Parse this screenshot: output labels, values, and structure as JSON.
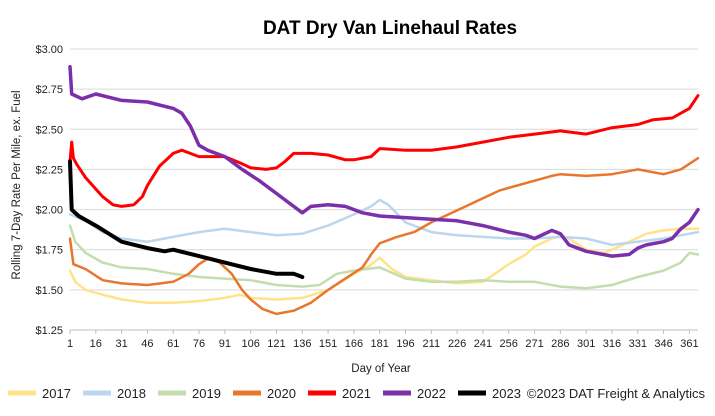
{
  "chart_data": {
    "type": "line",
    "title": "DAT Dry Van Linehaul Rates",
    "xlabel": "Day of Year",
    "ylabel": "Rolling 7-Day Rate Per Mile, ex. Fuel",
    "xlim": [
      1,
      366
    ],
    "ylim": [
      1.25,
      3.0
    ],
    "x_ticks": [
      1,
      16,
      31,
      46,
      61,
      76,
      91,
      106,
      121,
      136,
      151,
      166,
      181,
      196,
      211,
      226,
      241,
      256,
      271,
      286,
      301,
      316,
      331,
      346,
      361
    ],
    "y_ticks": [
      {
        "value": 1.25,
        "label": "$1.25"
      },
      {
        "value": 1.5,
        "label": "$1.50"
      },
      {
        "value": 1.75,
        "label": "$1.75"
      },
      {
        "value": 2.0,
        "label": "$2.00"
      },
      {
        "value": 2.25,
        "label": "$2.25"
      },
      {
        "value": 2.5,
        "label": "$2.50"
      },
      {
        "value": 2.75,
        "label": "$2.75"
      },
      {
        "value": 3.0,
        "label": "$3.00"
      }
    ],
    "grid": "horizontal",
    "legend_position": "bottom",
    "credit": "©2023 DAT Freight & Analytics",
    "series": [
      {
        "name": "2017",
        "color": "#FFE38A",
        "width": 2.5,
        "points": [
          [
            1,
            1.62
          ],
          [
            4,
            1.55
          ],
          [
            10,
            1.5
          ],
          [
            20,
            1.47
          ],
          [
            31,
            1.44
          ],
          [
            46,
            1.42
          ],
          [
            61,
            1.42
          ],
          [
            76,
            1.43
          ],
          [
            91,
            1.45
          ],
          [
            100,
            1.47
          ],
          [
            106,
            1.45
          ],
          [
            121,
            1.44
          ],
          [
            136,
            1.45
          ],
          [
            151,
            1.5
          ],
          [
            166,
            1.6
          ],
          [
            175,
            1.65
          ],
          [
            181,
            1.7
          ],
          [
            188,
            1.63
          ],
          [
            196,
            1.58
          ],
          [
            211,
            1.56
          ],
          [
            226,
            1.54
          ],
          [
            241,
            1.55
          ],
          [
            248,
            1.6
          ],
          [
            256,
            1.66
          ],
          [
            266,
            1.72
          ],
          [
            271,
            1.77
          ],
          [
            281,
            1.82
          ],
          [
            286,
            1.84
          ],
          [
            291,
            1.82
          ],
          [
            301,
            1.75
          ],
          [
            311,
            1.73
          ],
          [
            316,
            1.75
          ],
          [
            326,
            1.8
          ],
          [
            336,
            1.85
          ],
          [
            346,
            1.87
          ],
          [
            356,
            1.88
          ],
          [
            366,
            1.88
          ]
        ]
      },
      {
        "name": "2018",
        "color": "#BCD6EE",
        "width": 2.5,
        "points": [
          [
            1,
            1.97
          ],
          [
            10,
            1.93
          ],
          [
            20,
            1.86
          ],
          [
            31,
            1.82
          ],
          [
            46,
            1.8
          ],
          [
            61,
            1.83
          ],
          [
            76,
            1.86
          ],
          [
            91,
            1.88
          ],
          [
            106,
            1.86
          ],
          [
            121,
            1.84
          ],
          [
            136,
            1.85
          ],
          [
            151,
            1.9
          ],
          [
            166,
            1.97
          ],
          [
            176,
            2.02
          ],
          [
            181,
            2.06
          ],
          [
            186,
            2.03
          ],
          [
            196,
            1.92
          ],
          [
            211,
            1.86
          ],
          [
            226,
            1.84
          ],
          [
            241,
            1.83
          ],
          [
            256,
            1.82
          ],
          [
            271,
            1.82
          ],
          [
            286,
            1.83
          ],
          [
            301,
            1.82
          ],
          [
            316,
            1.78
          ],
          [
            331,
            1.8
          ],
          [
            346,
            1.82
          ],
          [
            356,
            1.84
          ],
          [
            366,
            1.86
          ]
        ]
      },
      {
        "name": "2019",
        "color": "#C4DDAF",
        "width": 2.5,
        "points": [
          [
            1,
            1.9
          ],
          [
            4,
            1.8
          ],
          [
            10,
            1.73
          ],
          [
            20,
            1.67
          ],
          [
            31,
            1.64
          ],
          [
            46,
            1.63
          ],
          [
            61,
            1.6
          ],
          [
            76,
            1.58
          ],
          [
            91,
            1.57
          ],
          [
            106,
            1.56
          ],
          [
            121,
            1.53
          ],
          [
            136,
            1.52
          ],
          [
            146,
            1.53
          ],
          [
            156,
            1.6
          ],
          [
            166,
            1.62
          ],
          [
            181,
            1.64
          ],
          [
            196,
            1.57
          ],
          [
            211,
            1.55
          ],
          [
            226,
            1.55
          ],
          [
            241,
            1.56
          ],
          [
            256,
            1.55
          ],
          [
            271,
            1.55
          ],
          [
            286,
            1.52
          ],
          [
            301,
            1.51
          ],
          [
            316,
            1.53
          ],
          [
            331,
            1.58
          ],
          [
            346,
            1.62
          ],
          [
            356,
            1.67
          ],
          [
            361,
            1.73
          ],
          [
            366,
            1.72
          ]
        ]
      },
      {
        "name": "2020",
        "color": "#E8762D",
        "width": 2.5,
        "points": [
          [
            1,
            1.82
          ],
          [
            3,
            1.66
          ],
          [
            10,
            1.63
          ],
          [
            20,
            1.56
          ],
          [
            31,
            1.54
          ],
          [
            46,
            1.53
          ],
          [
            61,
            1.55
          ],
          [
            70,
            1.6
          ],
          [
            76,
            1.66
          ],
          [
            82,
            1.7
          ],
          [
            88,
            1.67
          ],
          [
            95,
            1.6
          ],
          [
            101,
            1.5
          ],
          [
            106,
            1.44
          ],
          [
            113,
            1.38
          ],
          [
            121,
            1.35
          ],
          [
            131,
            1.37
          ],
          [
            141,
            1.42
          ],
          [
            151,
            1.5
          ],
          [
            161,
            1.57
          ],
          [
            171,
            1.64
          ],
          [
            176,
            1.72
          ],
          [
            181,
            1.79
          ],
          [
            191,
            1.83
          ],
          [
            201,
            1.86
          ],
          [
            211,
            1.92
          ],
          [
            221,
            1.97
          ],
          [
            231,
            2.02
          ],
          [
            241,
            2.07
          ],
          [
            251,
            2.12
          ],
          [
            261,
            2.15
          ],
          [
            271,
            2.18
          ],
          [
            281,
            2.21
          ],
          [
            286,
            2.22
          ],
          [
            301,
            2.21
          ],
          [
            316,
            2.22
          ],
          [
            331,
            2.25
          ],
          [
            346,
            2.22
          ],
          [
            356,
            2.25
          ],
          [
            366,
            2.32
          ]
        ]
      },
      {
        "name": "2021",
        "color": "#FF0000",
        "width": 3,
        "points": [
          [
            1,
            2.3
          ],
          [
            2,
            2.42
          ],
          [
            3,
            2.32
          ],
          [
            5,
            2.28
          ],
          [
            10,
            2.2
          ],
          [
            20,
            2.08
          ],
          [
            26,
            2.03
          ],
          [
            31,
            2.02
          ],
          [
            38,
            2.03
          ],
          [
            43,
            2.08
          ],
          [
            46,
            2.15
          ],
          [
            53,
            2.27
          ],
          [
            61,
            2.35
          ],
          [
            66,
            2.37
          ],
          [
            76,
            2.33
          ],
          [
            91,
            2.33
          ],
          [
            100,
            2.29
          ],
          [
            106,
            2.26
          ],
          [
            115,
            2.25
          ],
          [
            121,
            2.26
          ],
          [
            126,
            2.3
          ],
          [
            131,
            2.35
          ],
          [
            141,
            2.35
          ],
          [
            151,
            2.34
          ],
          [
            161,
            2.31
          ],
          [
            166,
            2.31
          ],
          [
            176,
            2.33
          ],
          [
            181,
            2.38
          ],
          [
            196,
            2.37
          ],
          [
            211,
            2.37
          ],
          [
            226,
            2.39
          ],
          [
            241,
            2.42
          ],
          [
            256,
            2.45
          ],
          [
            271,
            2.47
          ],
          [
            286,
            2.49
          ],
          [
            301,
            2.47
          ],
          [
            316,
            2.51
          ],
          [
            331,
            2.53
          ],
          [
            340,
            2.56
          ],
          [
            351,
            2.57
          ],
          [
            361,
            2.63
          ],
          [
            366,
            2.71
          ]
        ]
      },
      {
        "name": "2022",
        "color": "#7B2FAA",
        "width": 3.5,
        "points": [
          [
            1,
            2.89
          ],
          [
            2,
            2.72
          ],
          [
            8,
            2.69
          ],
          [
            16,
            2.72
          ],
          [
            31,
            2.68
          ],
          [
            46,
            2.67
          ],
          [
            61,
            2.63
          ],
          [
            66,
            2.6
          ],
          [
            71,
            2.52
          ],
          [
            76,
            2.4
          ],
          [
            81,
            2.37
          ],
          [
            91,
            2.33
          ],
          [
            101,
            2.25
          ],
          [
            111,
            2.18
          ],
          [
            121,
            2.1
          ],
          [
            131,
            2.02
          ],
          [
            136,
            1.98
          ],
          [
            141,
            2.02
          ],
          [
            151,
            2.03
          ],
          [
            161,
            2.02
          ],
          [
            171,
            1.98
          ],
          [
            181,
            1.96
          ],
          [
            196,
            1.95
          ],
          [
            211,
            1.94
          ],
          [
            226,
            1.93
          ],
          [
            241,
            1.9
          ],
          [
            256,
            1.86
          ],
          [
            266,
            1.84
          ],
          [
            271,
            1.82
          ],
          [
            281,
            1.87
          ],
          [
            286,
            1.85
          ],
          [
            291,
            1.78
          ],
          [
            301,
            1.74
          ],
          [
            311,
            1.72
          ],
          [
            316,
            1.71
          ],
          [
            326,
            1.72
          ],
          [
            331,
            1.76
          ],
          [
            336,
            1.78
          ],
          [
            346,
            1.8
          ],
          [
            351,
            1.82
          ],
          [
            356,
            1.88
          ],
          [
            361,
            1.92
          ],
          [
            366,
            2.0
          ]
        ]
      },
      {
        "name": "2023",
        "color": "#000000",
        "width": 4,
        "points": [
          [
            1,
            2.3
          ],
          [
            2,
            2.0
          ],
          [
            6,
            1.96
          ],
          [
            16,
            1.9
          ],
          [
            31,
            1.8
          ],
          [
            46,
            1.76
          ],
          [
            56,
            1.74
          ],
          [
            61,
            1.75
          ],
          [
            76,
            1.71
          ],
          [
            91,
            1.67
          ],
          [
            106,
            1.63
          ],
          [
            121,
            1.6
          ],
          [
            131,
            1.6
          ],
          [
            136,
            1.58
          ]
        ]
      }
    ]
  }
}
